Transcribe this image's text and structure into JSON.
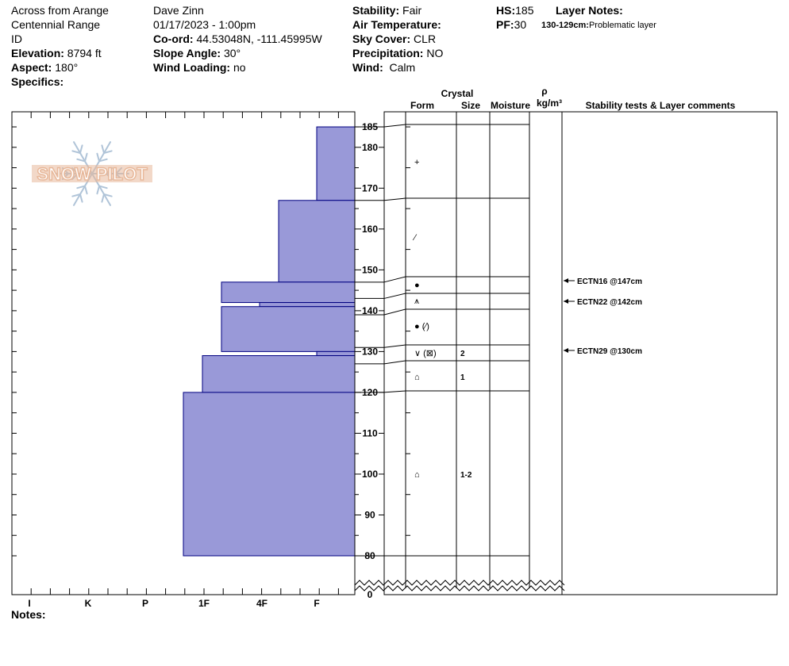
{
  "header": {
    "location_line1": "Across from Arange",
    "location_line2": "Centennial Range",
    "location_line3": "ID",
    "elevation_label": "Elevation:",
    "elevation_value": "8794 ft",
    "aspect_label": "Aspect:",
    "aspect_value": "180°",
    "specifics_label": "Specifics:",
    "observer": "Dave Zinn",
    "datetime": "01/17/2023 - 1:00pm",
    "coord_label": "Co-ord:",
    "coord_value": "44.53048N, -111.45995W",
    "slope_label": "Slope Angle:",
    "slope_value": "30°",
    "wind_loading_label": "Wind Loading:",
    "wind_loading_value": "no",
    "stability_label": "Stability:",
    "stability_value": "Fair",
    "air_temp_label": "Air Temperature:",
    "air_temp_value": "",
    "sky_cover_label": "Sky Cover:",
    "sky_cover_value": "CLR",
    "precip_label": "Precipitation:",
    "precip_value": "NO",
    "wind_label": "Wind:",
    "wind_value": "Calm",
    "hs_label": "HS:",
    "hs_value": "185",
    "pf_label": "PF:",
    "pf_value": "30",
    "layer_notes_label": "Layer Notes:",
    "layer_note_range": "130-129cm:",
    "layer_note_text": "Problematic layer"
  },
  "columns": {
    "crystal": "Crystal",
    "form": "Form",
    "size": "Size",
    "moisture": "Moisture",
    "rho": "ρ",
    "density_unit": "kg/m³",
    "stability_comments": "Stability tests & Layer comments"
  },
  "footer": {
    "notes_label": "Notes:"
  },
  "logo_text": "SNOW PILOT",
  "chart_data": {
    "type": "bar",
    "description_axis": "Hand hardness profile vs height",
    "x_categories": [
      "I",
      "K",
      "P",
      "1F",
      "4F",
      "F"
    ],
    "y_ticks": [
      0,
      80,
      90,
      100,
      110,
      120,
      130,
      140,
      150,
      160,
      170,
      180,
      185
    ],
    "y_range_cm": [
      80,
      185
    ],
    "hardness_layers": [
      {
        "top": 185,
        "bottom": 167,
        "hardness": "F"
      },
      {
        "top": 167,
        "bottom": 147,
        "hardness": "4F-"
      },
      {
        "top": 147,
        "bottom": 142,
        "hardness": "1F+"
      },
      {
        "top": 142,
        "bottom": 141,
        "hardness": "4F"
      },
      {
        "top": 141,
        "bottom": 130,
        "hardness": "1F+"
      },
      {
        "top": 130,
        "bottom": 129,
        "hardness": "F"
      },
      {
        "top": 129,
        "bottom": 120,
        "hardness": "1F"
      },
      {
        "top": 120,
        "bottom": 80,
        "hardness": "1F-"
      }
    ],
    "layer_boundaries": [
      185,
      167,
      147,
      143,
      139,
      131,
      127,
      120,
      80
    ],
    "crystal_layers": [
      {
        "row_top": 185,
        "row_bottom": 167,
        "form": "+",
        "size": "",
        "y": 176
      },
      {
        "row_top": 167,
        "row_bottom": 147,
        "form": "⁄",
        "size": "",
        "y": 158
      },
      {
        "row_top": 147,
        "row_bottom": 143,
        "form": "●",
        "size": "",
        "y": 145
      },
      {
        "row_top": 143,
        "row_bottom": 139,
        "form": "⩚",
        "size": "",
        "y": 141
      },
      {
        "row_top": 139,
        "row_bottom": 131,
        "form": "● (⁄)",
        "size": "",
        "y": 135.5
      },
      {
        "row_top": 131,
        "row_bottom": 127,
        "form": "∨ (⊠)",
        "size": "2",
        "y": 129.5
      },
      {
        "row_top": 127,
        "row_bottom": 120,
        "form": "⌂",
        "size": "1",
        "y": 124
      },
      {
        "row_top": 120,
        "row_bottom": 80,
        "form": "⌂",
        "size": "1-2",
        "y": 100
      }
    ],
    "stability_tests": [
      {
        "label": "ECTN16 @147cm",
        "height": 147
      },
      {
        "label": "ECTN22 @142cm",
        "height": 142
      },
      {
        "label": "ECTN29 @130cm",
        "height": 130
      }
    ]
  },
  "colors": {
    "bar_fill": "#9999d8",
    "bar_stroke": "#000080",
    "logo_orange": "#e8b89a",
    "logo_blue": "#b0c4d8"
  }
}
